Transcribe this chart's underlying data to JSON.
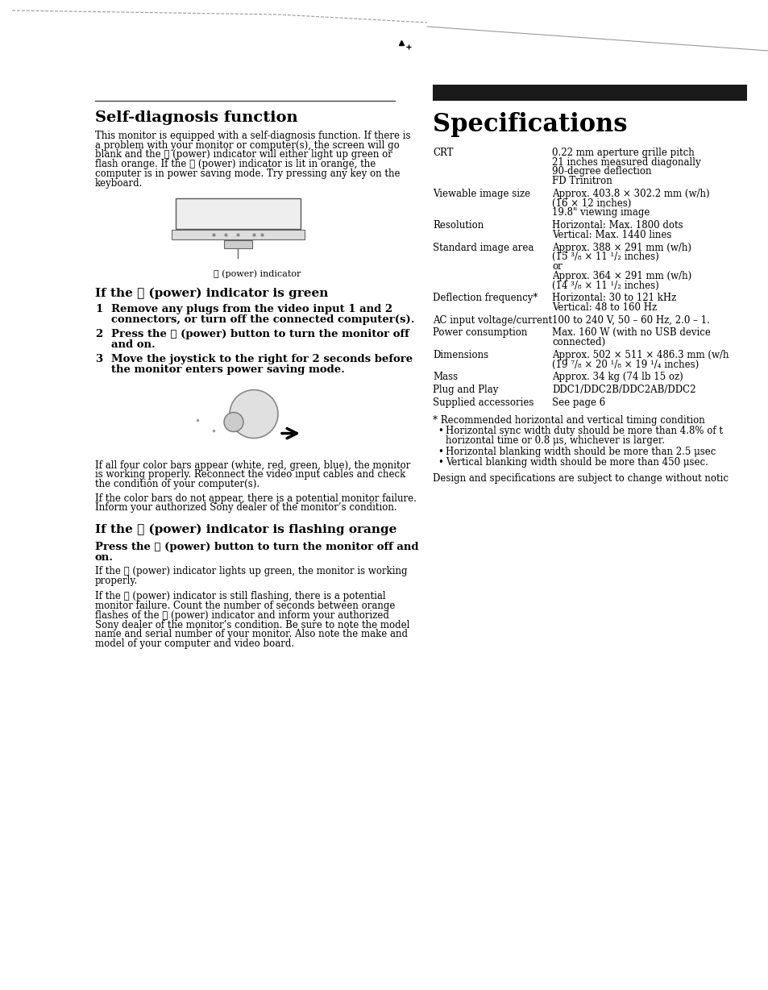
{
  "bg_color": "#ffffff",
  "left": {
    "title": "Self-diagnosis function",
    "intro_lines": [
      "This monitor is equipped with a self-diagnosis function. If there is",
      "a problem with your monitor or computer(s), the screen will go",
      "blank and the ⓨ (power) indicator will either light up green or",
      "flash orange. If the ⓨ (power) indicator is lit in orange, the",
      "computer is in power saving mode. Try pressing any key on the",
      "keyboard."
    ],
    "green_title": "If the ⓨ (power) indicator is green",
    "green_items": [
      [
        "Remove any plugs from the video input 1 and 2",
        "connectors, or turn off the connected computer(s)."
      ],
      [
        "Press the ⓨ (power) button to turn the monitor off",
        "and on."
      ],
      [
        "Move the joystick to the right for 2 seconds before",
        "the monitor enters power saving mode."
      ]
    ],
    "after1_lines": [
      "If all four color bars appear (white, red, green, blue), the monitor",
      "is working properly. Reconnect the video input cables and check",
      "the condition of your computer(s)."
    ],
    "after2_lines": [
      "If the color bars do not appear, there is a potential monitor failure.",
      "Inform your authorized Sony dealer of the monitor’s condition."
    ],
    "orange_title": "If the ⓨ (power) indicator is flashing orange",
    "orange_bold_lines": [
      "Press the ⓨ (power) button to turn the monitor off and",
      "on."
    ],
    "ao1_lines": [
      "If the ⓨ (power) indicator lights up green, the monitor is working",
      "properly."
    ],
    "ao2_lines": [
      "If the ⓨ (power) indicator is still flashing, there is a potential",
      "monitor failure. Count the number of seconds between orange",
      "flashes of the ⓨ (power) indicator and inform your authorized",
      "Sony dealer of the monitor’s condition. Be sure to note the model",
      "name and serial number of your monitor. Also note the make and",
      "model of your computer and video board."
    ]
  },
  "right": {
    "title": "Specifications",
    "specs": [
      [
        "CRT",
        "0.22 mm aperture grille pitch\n21 inches measured diagonally\n90-degree deflection\nFD Trinitron"
      ],
      [
        "Viewable image size",
        "Approx. 403.8 × 302.2 mm (w/h)\n(16 × 12 inches)\n19.8\" viewing image"
      ],
      [
        "Resolution",
        "Horizontal: Max. 1800 dots\nVertical: Max. 1440 lines"
      ],
      [
        "Standard image area",
        "Approx. 388 × 291 mm (w/h)\n(15 ³/₈ × 11 ¹/₂ inches)\nor\nApprox. 364 × 291 mm (w/h)\n(14 ³/₈ × 11 ¹/₂ inches)"
      ],
      [
        "Deflection frequency*",
        "Horizontal: 30 to 121 kHz\nVertical: 48 to 160 Hz"
      ],
      [
        "AC input voltage/current",
        "100 to 240 V, 50 – 60 Hz, 2.0 – 1."
      ],
      [
        "Power consumption",
        "Max. 160 W (with no USB device\nconnected)"
      ],
      [
        "Dimensions",
        "Approx. 502 × 511 × 486.3 mm (w/h\n(19 ⁷/₈ × 20 ¹/₈ × 19 ¹/₄ inches)"
      ],
      [
        "Mass",
        "Approx. 34 kg (74 lb 15 oz)"
      ],
      [
        "Plug and Play",
        "DDC1/DDC2B/DDC2AB/DDC2"
      ],
      [
        "Supplied accessories",
        "See page 6"
      ]
    ],
    "fn_title": "* Recommended horizontal and vertical timing condition",
    "fn_bullets": [
      "Horizontal sync width duty should be more than 4.8% of t\nhorizontal time or 0.8 μs, whichever is larger.",
      "Horizontal blanking width should be more than 2.5 μsec",
      "Vertical blanking width should be more than 450 μsec."
    ],
    "design_note": "Design and specifications are subject to change without notic"
  },
  "diag_label": "ⓨ (power) indicator",
  "line_color": "#555555",
  "title_line_color": "#333333"
}
